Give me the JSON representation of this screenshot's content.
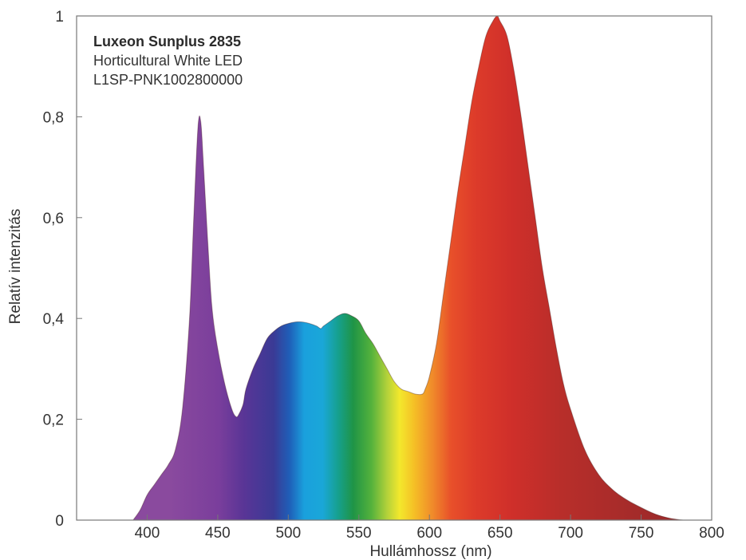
{
  "chart_data": {
    "type": "area",
    "title_lines": [
      "Luxeon Sunplus 2835",
      "Horticultural White LED",
      "L1SP-PNK1002800000"
    ],
    "xlabel": "Hullámhossz (nm)",
    "ylabel": "Relatív intenzitás",
    "xlim": [
      350,
      800
    ],
    "ylim": [
      0,
      1
    ],
    "x_ticks": [
      {
        "value": 400,
        "label": "400"
      },
      {
        "value": 450,
        "label": "450"
      },
      {
        "value": 500,
        "label": "500"
      },
      {
        "value": 550,
        "label": "550"
      },
      {
        "value": 600,
        "label": "600"
      },
      {
        "value": 650,
        "label": "650"
      },
      {
        "value": 700,
        "label": "700"
      },
      {
        "value": 750,
        "label": "750"
      },
      {
        "value": 800,
        "label": "800"
      }
    ],
    "y_ticks": [
      {
        "value": 0,
        "label": "0"
      },
      {
        "value": 0.2,
        "label": "0,2"
      },
      {
        "value": 0.4,
        "label": "0,4"
      },
      {
        "value": 0.6,
        "label": "0,6"
      },
      {
        "value": 0.8,
        "label": "0,8"
      },
      {
        "value": 1,
        "label": "1"
      }
    ],
    "grid": false,
    "series": [
      {
        "x": [
          390,
          395,
          400,
          405,
          410,
          415,
          420,
          425,
          430,
          433,
          436,
          438,
          440,
          443,
          446,
          450,
          455,
          460,
          463,
          465,
          468,
          470,
          475,
          480,
          485,
          490,
          495,
          500,
          505,
          510,
          515,
          520,
          523,
          525,
          530,
          535,
          540,
          545,
          550,
          555,
          560,
          565,
          570,
          575,
          580,
          585,
          590,
          595,
          597,
          600,
          605,
          610,
          615,
          620,
          625,
          630,
          635,
          640,
          645,
          648,
          650,
          655,
          660,
          665,
          670,
          675,
          680,
          685,
          690,
          695,
          700,
          710,
          720,
          730,
          740,
          750,
          760,
          770,
          780
        ],
        "y": [
          0.0,
          0.02,
          0.05,
          0.07,
          0.09,
          0.11,
          0.14,
          0.22,
          0.4,
          0.6,
          0.78,
          0.79,
          0.7,
          0.55,
          0.42,
          0.34,
          0.27,
          0.22,
          0.205,
          0.21,
          0.23,
          0.26,
          0.3,
          0.33,
          0.36,
          0.375,
          0.385,
          0.39,
          0.393,
          0.393,
          0.39,
          0.385,
          0.38,
          0.385,
          0.395,
          0.405,
          0.41,
          0.405,
          0.395,
          0.37,
          0.35,
          0.325,
          0.3,
          0.275,
          0.26,
          0.255,
          0.25,
          0.25,
          0.26,
          0.285,
          0.35,
          0.45,
          0.55,
          0.65,
          0.74,
          0.83,
          0.9,
          0.96,
          0.99,
          1.0,
          0.99,
          0.96,
          0.89,
          0.8,
          0.7,
          0.6,
          0.5,
          0.42,
          0.34,
          0.27,
          0.22,
          0.14,
          0.09,
          0.06,
          0.04,
          0.025,
          0.012,
          0.004,
          0.0
        ]
      }
    ]
  }
}
